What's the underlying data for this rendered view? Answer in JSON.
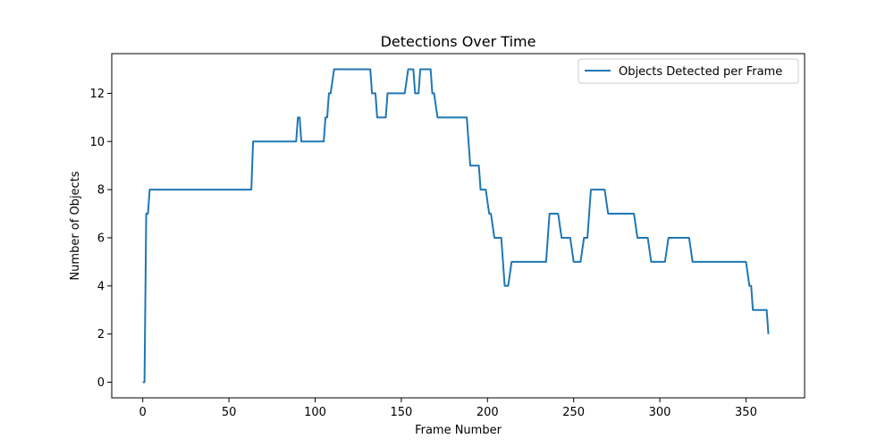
{
  "chart_data": {
    "type": "line",
    "title": "Detections Over Time",
    "xlabel": "Frame Number",
    "ylabel": "Number of Objects",
    "xlim": [
      -18,
      384
    ],
    "ylim": [
      -0.65,
      13.65
    ],
    "xticks": [
      0,
      50,
      100,
      150,
      200,
      250,
      300,
      350
    ],
    "yticks": [
      0,
      2,
      4,
      6,
      8,
      10,
      12
    ],
    "grid": false,
    "legend_position": "top-right",
    "colors": {
      "series": "#1f77b4"
    },
    "series": [
      {
        "name": "Objects Detected per Frame",
        "points": [
          [
            0,
            0
          ],
          [
            1,
            0
          ],
          [
            2,
            7
          ],
          [
            3,
            7
          ],
          [
            4,
            8
          ],
          [
            62,
            8
          ],
          [
            63,
            8
          ],
          [
            64,
            10
          ],
          [
            89,
            10
          ],
          [
            90,
            11
          ],
          [
            91,
            11
          ],
          [
            92,
            10
          ],
          [
            105,
            10
          ],
          [
            106,
            11
          ],
          [
            107,
            11
          ],
          [
            108,
            12
          ],
          [
            109,
            12
          ],
          [
            111,
            13
          ],
          [
            132,
            13
          ],
          [
            133,
            12
          ],
          [
            135,
            12
          ],
          [
            136,
            11
          ],
          [
            141,
            11
          ],
          [
            142,
            12
          ],
          [
            152,
            12
          ],
          [
            154,
            13
          ],
          [
            157,
            13
          ],
          [
            158,
            12
          ],
          [
            160,
            12
          ],
          [
            161,
            13
          ],
          [
            167,
            13
          ],
          [
            168,
            12
          ],
          [
            169,
            12
          ],
          [
            171,
            11
          ],
          [
            188,
            11
          ],
          [
            190,
            9
          ],
          [
            195,
            9
          ],
          [
            196,
            8
          ],
          [
            199,
            8
          ],
          [
            201,
            7
          ],
          [
            202,
            7
          ],
          [
            204,
            6
          ],
          [
            208,
            6
          ],
          [
            210,
            4
          ],
          [
            212,
            4
          ],
          [
            214,
            5
          ],
          [
            234,
            5
          ],
          [
            236,
            7
          ],
          [
            241,
            7
          ],
          [
            243,
            6
          ],
          [
            248,
            6
          ],
          [
            250,
            5
          ],
          [
            254,
            5
          ],
          [
            256,
            6
          ],
          [
            258,
            6
          ],
          [
            260,
            8
          ],
          [
            268,
            8
          ],
          [
            270,
            7
          ],
          [
            285,
            7
          ],
          [
            287,
            6
          ],
          [
            293,
            6
          ],
          [
            295,
            5
          ],
          [
            303,
            5
          ],
          [
            305,
            6
          ],
          [
            317,
            6
          ],
          [
            319,
            5
          ],
          [
            350,
            5
          ],
          [
            352,
            4
          ],
          [
            353,
            4
          ],
          [
            354,
            3
          ],
          [
            362,
            3
          ],
          [
            363,
            2
          ]
        ]
      }
    ]
  }
}
